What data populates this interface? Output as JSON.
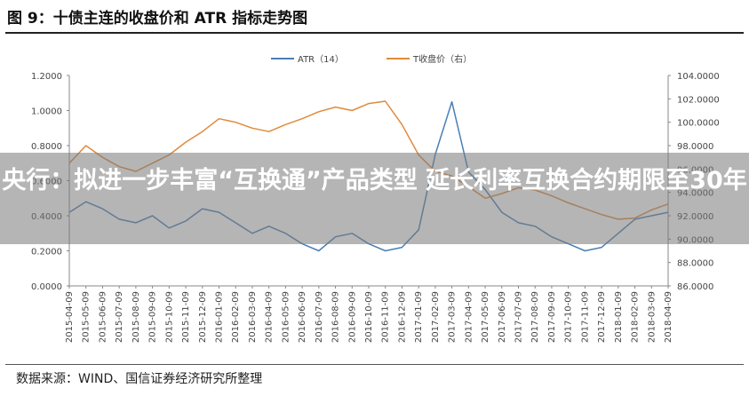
{
  "figure": {
    "title": "图 9：十债主连的收盘价和 ATR 指标走势图",
    "source": "数据来源：WIND、国信证券经济研究所整理"
  },
  "overlay": {
    "headline": "央行：拟进一步丰富“互换通”产品类型 延长利率互换合约期限至30年"
  },
  "colors": {
    "atr": "#4a7fb5",
    "close": "#e08a3c",
    "axis": "#888888"
  },
  "chart_data": {
    "type": "line",
    "x": [
      "2015-04-09",
      "2015-05-09",
      "2015-06-09",
      "2015-07-09",
      "2015-08-09",
      "2015-09-09",
      "2015-10-09",
      "2015-11-09",
      "2015-12-09",
      "2016-01-09",
      "2016-02-09",
      "2016-03-09",
      "2016-04-09",
      "2016-05-09",
      "2016-06-09",
      "2016-07-09",
      "2016-08-09",
      "2016-09-09",
      "2016-10-09",
      "2016-11-09",
      "2016-12-09",
      "2017-01-09",
      "2017-02-09",
      "2017-03-09",
      "2017-04-09",
      "2017-05-09",
      "2017-06-09",
      "2017-07-09",
      "2017-08-09",
      "2017-09-09",
      "2017-10-09",
      "2017-11-09",
      "2017-12-09",
      "2018-01-09",
      "2018-02-09",
      "2018-03-09",
      "2018-04-09"
    ],
    "series": [
      {
        "name": "ATR（14）",
        "axis": "left",
        "values": [
          0.42,
          0.48,
          0.44,
          0.38,
          0.36,
          0.4,
          0.33,
          0.37,
          0.44,
          0.42,
          0.36,
          0.3,
          0.34,
          0.3,
          0.24,
          0.2,
          0.28,
          0.3,
          0.24,
          0.2,
          0.22,
          0.32,
          0.75,
          1.05,
          0.65,
          0.55,
          0.42,
          0.36,
          0.34,
          0.28,
          0.24,
          0.2,
          0.22,
          0.3,
          0.38,
          0.4,
          0.42
        ]
      },
      {
        "name": "T收盘价（右）",
        "axis": "right",
        "values": [
          96.5,
          98.0,
          97.0,
          96.2,
          95.8,
          96.5,
          97.2,
          98.3,
          99.2,
          100.3,
          100.0,
          99.5,
          99.2,
          99.8,
          100.3,
          100.9,
          101.3,
          101.0,
          101.6,
          101.8,
          99.8,
          97.2,
          95.8,
          95.4,
          94.5,
          93.5,
          93.9,
          94.4,
          94.2,
          93.7,
          93.1,
          92.6,
          92.1,
          91.7,
          91.8,
          92.5,
          93.0
        ]
      }
    ],
    "y_left": {
      "min": 0,
      "max": 1.2,
      "ticks": [
        "0.0000",
        "0.2000",
        "0.4000",
        "0.6000",
        "0.8000",
        "1.0000",
        "1.2000"
      ]
    },
    "y_right": {
      "min": 86,
      "max": 104,
      "ticks": [
        "86.0000",
        "88.0000",
        "90.0000",
        "92.0000",
        "94.0000",
        "96.0000",
        "98.0000",
        "100.0000",
        "102.0000",
        "104.0000"
      ]
    },
    "grid": false,
    "legend": "top-center"
  }
}
